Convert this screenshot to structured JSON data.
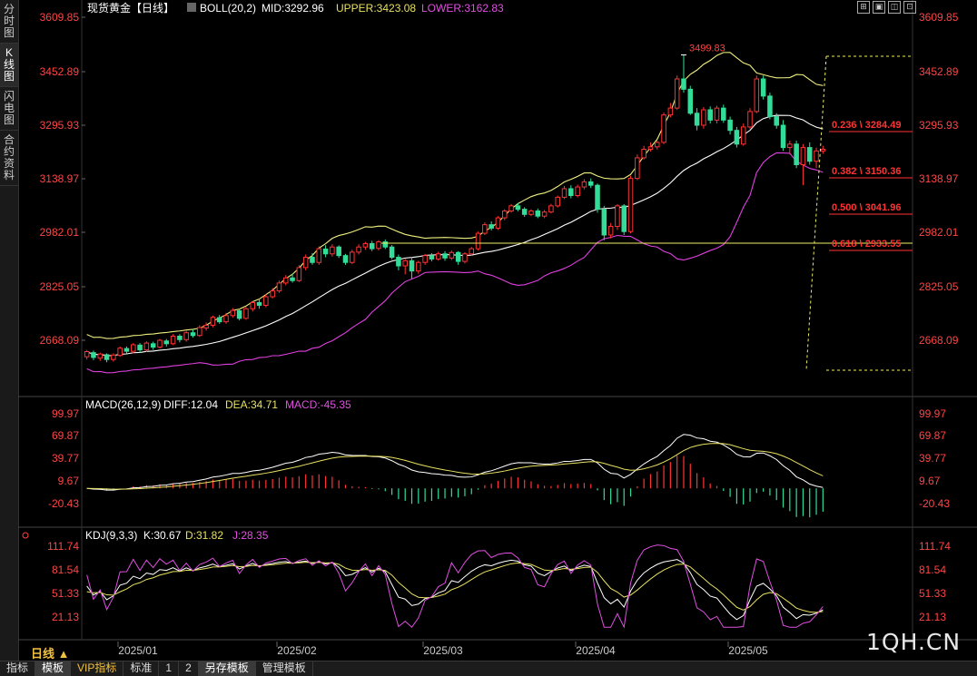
{
  "sidebar": {
    "tabs": [
      {
        "label": "分\n时\n图",
        "active": false
      },
      {
        "label": "K\n线\n图",
        "active": true
      },
      {
        "label": "闪\n电\n图",
        "active": false
      },
      {
        "label": "合\n约\n资\n料",
        "active": false
      }
    ]
  },
  "main_legend": {
    "title": "现货黄金【日线】",
    "boll": "BOLL(20,2)",
    "mid": "MID:3292.96",
    "upper": "UPPER:3423.08",
    "lower": "LOWER:3162.83"
  },
  "main_axis": {
    "ticks": [
      "3609.85",
      "3452.89",
      "3295.93",
      "3138.97",
      "2982.01",
      "2825.05",
      "2668.09"
    ]
  },
  "annotations": {
    "high": "3499.83",
    "fib": [
      "0.236 \\ 3284.49",
      "0.382 \\ 3150.36",
      "0.500 \\ 3041.96",
      "0.618 \\ 2933.55"
    ]
  },
  "macd_legend": {
    "title": "MACD(26,12,9)",
    "diff": "DIFF:12.04",
    "dea": "DEA:34.71",
    "macd": "MACD:-45.35"
  },
  "macd_axis": {
    "ticks": [
      "99.97",
      "69.87",
      "39.77",
      "9.67",
      "-20.43"
    ]
  },
  "kdj_legend": {
    "title": "KDJ(9,3,3)",
    "k": "K:30.67",
    "d": "D:31.82",
    "j": "J:28.35"
  },
  "kdj_axis": {
    "ticks": [
      "111.74",
      "81.54",
      "51.33",
      "21.13"
    ]
  },
  "date_axis": {
    "labels": [
      "2025/01",
      "2025/02",
      "2025/03",
      "2025/04",
      "2025/05"
    ]
  },
  "period_label": "日线 ▲",
  "bottom_tabs": [
    "指标",
    "模板",
    "VIP指标",
    "标准",
    "1",
    "2",
    "另存模板",
    "管理模板"
  ],
  "watermark": "1QH.CN",
  "window_icons": [
    "⊞",
    "▣",
    "◫",
    "⊡"
  ],
  "colors": {
    "up": "#ff3333",
    "down": "#33dd99",
    "upper": "#f0f080",
    "mid": "#ffffff",
    "lower": "#e040e0",
    "accent": "#ff3333"
  },
  "chart_data": {
    "type": "candlestick",
    "y_range_main": [
      2590,
      3640
    ],
    "price_ticks": [
      3609.85,
      3452.89,
      3295.93,
      3138.97,
      2982.01,
      2825.05,
      2668.09
    ],
    "candles": [
      [
        2620,
        2635,
        2640,
        2612
      ],
      [
        2632,
        2618,
        2638,
        2610
      ],
      [
        2616,
        2628,
        2632,
        2608
      ],
      [
        2626,
        2612,
        2630,
        2604
      ],
      [
        2612,
        2625,
        2630,
        2606
      ],
      [
        2624,
        2645,
        2650,
        2620
      ],
      [
        2644,
        2636,
        2650,
        2630
      ],
      [
        2636,
        2655,
        2660,
        2630
      ],
      [
        2654,
        2640,
        2660,
        2632
      ],
      [
        2640,
        2660,
        2665,
        2634
      ],
      [
        2658,
        2648,
        2664,
        2640
      ],
      [
        2648,
        2668,
        2672,
        2644
      ],
      [
        2666,
        2658,
        2672,
        2650
      ],
      [
        2658,
        2680,
        2686,
        2654
      ],
      [
        2680,
        2670,
        2686,
        2662
      ],
      [
        2670,
        2690,
        2695,
        2664
      ],
      [
        2690,
        2682,
        2700,
        2676
      ],
      [
        2682,
        2705,
        2712,
        2678
      ],
      [
        2704,
        2712,
        2720,
        2696
      ],
      [
        2712,
        2735,
        2740,
        2706
      ],
      [
        2734,
        2722,
        2742,
        2716
      ],
      [
        2722,
        2740,
        2748,
        2716
      ],
      [
        2740,
        2755,
        2762,
        2734
      ],
      [
        2754,
        2732,
        2760,
        2726
      ],
      [
        2732,
        2760,
        2765,
        2728
      ],
      [
        2760,
        2778,
        2782,
        2752
      ],
      [
        2778,
        2770,
        2790,
        2760
      ],
      [
        2770,
        2795,
        2802,
        2764
      ],
      [
        2795,
        2812,
        2820,
        2790
      ],
      [
        2812,
        2835,
        2842,
        2806
      ],
      [
        2835,
        2850,
        2858,
        2828
      ],
      [
        2850,
        2842,
        2862,
        2836
      ],
      [
        2842,
        2880,
        2888,
        2838
      ],
      [
        2880,
        2910,
        2918,
        2872
      ],
      [
        2910,
        2895,
        2922,
        2888
      ],
      [
        2895,
        2935,
        2942,
        2888
      ],
      [
        2934,
        2920,
        2945,
        2910
      ],
      [
        2920,
        2940,
        2948,
        2912
      ],
      [
        2940,
        2915,
        2945,
        2908
      ],
      [
        2915,
        2895,
        2920,
        2888
      ],
      [
        2895,
        2925,
        2932,
        2890
      ],
      [
        2925,
        2940,
        2948,
        2918
      ],
      [
        2940,
        2950,
        2955,
        2932
      ],
      [
        2950,
        2935,
        2958,
        2928
      ],
      [
        2936,
        2955,
        2960,
        2930
      ],
      [
        2955,
        2940,
        2962,
        2934
      ],
      [
        2940,
        2910,
        2946,
        2904
      ],
      [
        2910,
        2885,
        2918,
        2872
      ],
      [
        2885,
        2900,
        2905,
        2860
      ],
      [
        2900,
        2870,
        2910,
        2848
      ],
      [
        2870,
        2895,
        2900,
        2862
      ],
      [
        2895,
        2915,
        2920,
        2888
      ],
      [
        2915,
        2905,
        2922,
        2898
      ],
      [
        2905,
        2920,
        2926,
        2900
      ],
      [
        2920,
        2908,
        2928,
        2900
      ],
      [
        2908,
        2924,
        2930,
        2902
      ],
      [
        2924,
        2898,
        2928,
        2888
      ],
      [
        2898,
        2920,
        2925,
        2892
      ],
      [
        2920,
        2935,
        2940,
        2914
      ],
      [
        2935,
        2980,
        2985,
        2930
      ],
      [
        2980,
        3005,
        3012,
        2975
      ],
      [
        3005,
        2995,
        3015,
        2988
      ],
      [
        2995,
        3025,
        3030,
        2990
      ],
      [
        3025,
        3045,
        3050,
        3018
      ],
      [
        3045,
        3060,
        3065,
        3040
      ],
      [
        3060,
        3050,
        3068,
        3044
      ],
      [
        3050,
        3035,
        3056,
        3028
      ],
      [
        3035,
        3045,
        3050,
        3030
      ],
      [
        3045,
        3030,
        3052,
        3024
      ],
      [
        3030,
        3042,
        3048,
        3024
      ],
      [
        3042,
        3060,
        3066,
        3038
      ],
      [
        3060,
        3085,
        3090,
        3055
      ],
      [
        3085,
        3110,
        3118,
        3080
      ],
      [
        3110,
        3090,
        3120,
        3082
      ],
      [
        3090,
        3115,
        3122,
        3085
      ],
      [
        3115,
        3130,
        3138,
        3108
      ],
      [
        3130,
        3120,
        3140,
        3112
      ],
      [
        3120,
        3050,
        3125,
        3040
      ],
      [
        3050,
        2975,
        3060,
        2960
      ],
      [
        2975,
        3000,
        3010,
        2965
      ],
      [
        3000,
        3060,
        3065,
        2990
      ],
      [
        3060,
        2985,
        3065,
        2975
      ],
      [
        2985,
        3140,
        3148,
        2980
      ],
      [
        3140,
        3200,
        3210,
        3135
      ],
      [
        3200,
        3225,
        3235,
        3195
      ],
      [
        3225,
        3232,
        3245,
        3218
      ],
      [
        3232,
        3245,
        3250,
        3224
      ],
      [
        3245,
        3325,
        3332,
        3240
      ],
      [
        3325,
        3345,
        3360,
        3318
      ],
      [
        3345,
        3430,
        3440,
        3340
      ],
      [
        3430,
        3400,
        3500,
        3390
      ],
      [
        3400,
        3330,
        3410,
        3325
      ],
      [
        3330,
        3295,
        3345,
        3280
      ],
      [
        3295,
        3340,
        3348,
        3285
      ],
      [
        3340,
        3310,
        3350,
        3300
      ],
      [
        3310,
        3345,
        3352,
        3300
      ],
      [
        3345,
        3310,
        3355,
        3302
      ],
      [
        3310,
        3280,
        3320,
        3268
      ],
      [
        3280,
        3240,
        3290,
        3230
      ],
      [
        3240,
        3290,
        3300,
        3235
      ],
      [
        3290,
        3335,
        3345,
        3285
      ],
      [
        3335,
        3430,
        3440,
        3330
      ],
      [
        3430,
        3380,
        3440,
        3370
      ],
      [
        3380,
        3320,
        3390,
        3312
      ],
      [
        3320,
        3295,
        3330,
        3285
      ],
      [
        3295,
        3230,
        3310,
        3220
      ],
      [
        3230,
        3240,
        3250,
        3210
      ],
      [
        3240,
        3180,
        3250,
        3170
      ],
      [
        3180,
        3230,
        3240,
        3120
      ],
      [
        3230,
        3190,
        3245,
        3180
      ],
      [
        3190,
        3220,
        3230,
        3170
      ],
      [
        3220,
        3225,
        3235,
        3212
      ]
    ]
  }
}
